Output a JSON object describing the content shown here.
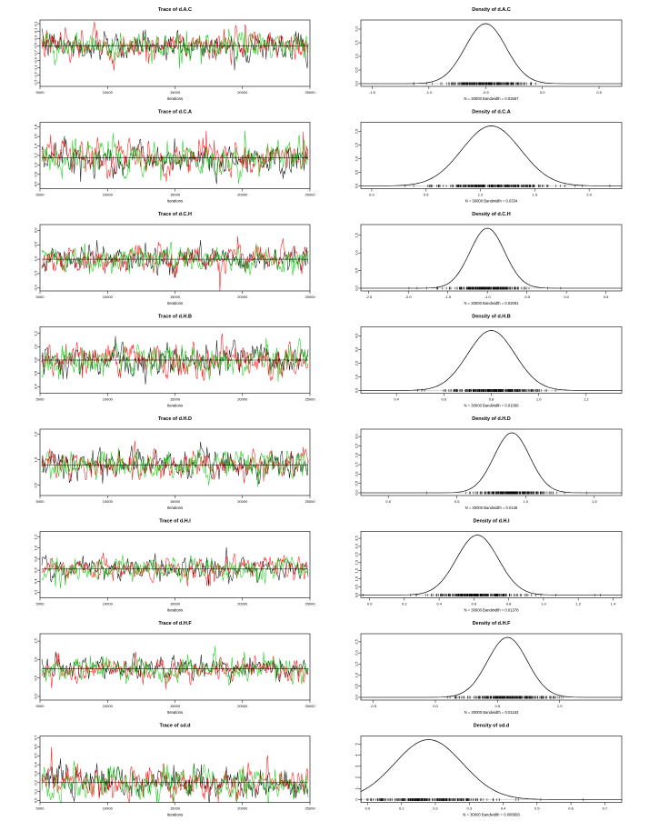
{
  "colors": {
    "chain1": "#000000",
    "chain2": "#ff0000",
    "chain3": "#00cc00",
    "density": "#000000",
    "frame": "#000000"
  },
  "panels": [
    {
      "trace": {
        "title": "Trace of d.A.C",
        "xlabel": "Iterations",
        "x_ticks": [
          "5000",
          "10000",
          "15000",
          "20000",
          "25000"
        ],
        "x_range": [
          5000,
          25000
        ],
        "y_ticks": [
          "0.1",
          "-0.1",
          "-0.3",
          "-0.5",
          "-0.7",
          "-0.9",
          "-1.1",
          "-1.3",
          "-1.5"
        ],
        "ylim": [
          -1.6,
          0.2
        ],
        "mean": -0.5,
        "sd": 0.17
      },
      "density": {
        "title": "Density of d.A.C",
        "xlabel": "N = 30000   Bandwidth = 0.02567",
        "x_ticks": [
          "-1.5",
          "-1.0",
          "-0.5",
          "0.0",
          "0.5"
        ],
        "xlim": [
          -1.6,
          0.7
        ],
        "y_ticks": [
          "0.0",
          "0.5",
          "1.0",
          "1.5",
          "2.0"
        ],
        "mean": -0.5,
        "sd": 0.18
      }
    },
    {
      "trace": {
        "title": "Trace of d.C.A",
        "xlabel": "Iterations",
        "x_ticks": [
          "5000",
          "10000",
          "15000",
          "20000",
          "25000"
        ],
        "x_range": [
          5000,
          25000
        ],
        "y_ticks": [
          "1.8",
          "1.6",
          "1.4",
          "1.2",
          "1.0",
          "0.8",
          "0.6"
        ],
        "ylim": [
          0.5,
          1.9
        ],
        "mean": 1.15,
        "sd": 0.15
      },
      "density": {
        "title": "Density of d.C.A",
        "xlabel": "N = 30000   Bandwidth = 0.0334",
        "x_ticks": [
          "0.0",
          "0.5",
          "1.0",
          "1.5",
          "2.0"
        ],
        "xlim": [
          -0.1,
          2.3
        ],
        "y_ticks": [
          "0.0",
          "0.5",
          "1.0",
          "1.5",
          "2.0"
        ],
        "mean": 1.1,
        "sd": 0.27
      }
    },
    {
      "trace": {
        "title": "Trace of d.C.H",
        "xlabel": "Iterations",
        "x_ticks": [
          "5000",
          "10000",
          "15000",
          "20000",
          "25000"
        ],
        "x_range": [
          5000,
          25000
        ],
        "y_ticks": [
          "0.0",
          "-0.5",
          "-1.0",
          "-1.5",
          "-2.0"
        ],
        "ylim": [
          -2.1,
          0.2
        ],
        "mean": -1.0,
        "sd": 0.2
      },
      "density": {
        "title": "Density of d.C.H",
        "xlabel": "N = 30000   Bandwidth = 0.02091",
        "x_ticks": [
          "-2.5",
          "-2.0",
          "-1.5",
          "-1.0",
          "-0.5",
          "0.0",
          "0.5"
        ],
        "xlim": [
          -2.6,
          0.7
        ],
        "y_ticks": [
          "0.0",
          "0.5",
          "1.0",
          "1.5"
        ],
        "mean": -1.0,
        "sd": 0.22
      }
    },
    {
      "trace": {
        "title": "Trace of d.H.B",
        "xlabel": "Iterations",
        "x_ticks": [
          "5000",
          "10000",
          "15000",
          "20000",
          "25000"
        ],
        "x_range": [
          5000,
          25000
        ],
        "y_ticks": [
          "1.2",
          "1.0",
          "0.8",
          "0.6",
          "0.4"
        ],
        "ylim": [
          0.3,
          1.3
        ],
        "mean": 0.8,
        "sd": 0.1
      },
      "density": {
        "title": "Density of d.H.B",
        "xlabel": "N = 30000   Bandwidth = 0.01098",
        "x_ticks": [
          "0.4",
          "0.6",
          "0.8",
          "1.0",
          "1.2"
        ],
        "xlim": [
          0.25,
          1.35
        ],
        "y_ticks": [
          "0.0",
          "1.0",
          "2.0",
          "3.0",
          "4.0"
        ],
        "mean": 0.8,
        "sd": 0.1
      }
    },
    {
      "trace": {
        "title": "Trace of d.H.D",
        "xlabel": "Iterations",
        "x_ticks": [
          "5000",
          "10000",
          "15000",
          "20000",
          "25000"
        ],
        "x_range": [
          5000,
          25000
        ],
        "y_ticks": [
          "1.5",
          "1.0",
          "0.5"
        ],
        "ylim": [
          0.3,
          1.6
        ],
        "mean": 0.9,
        "sd": 0.12
      },
      "density": {
        "title": "Density of d.H.D",
        "xlabel": "N = 30000   Bandwidth = 0.0148",
        "x_ticks": [
          "0.0",
          "0.5",
          "1.0",
          "1.5"
        ],
        "xlim": [
          -0.2,
          1.7
        ],
        "y_ticks": [
          "0.0",
          "0.5",
          "1.0",
          "1.5",
          "2.0",
          "2.5",
          "3.0"
        ],
        "mean": 0.9,
        "sd": 0.13
      }
    },
    {
      "trace": {
        "title": "Trace of d.H.I",
        "xlabel": "Iterations",
        "x_ticks": [
          "5000",
          "10000",
          "15000",
          "20000",
          "25000"
        ],
        "x_range": [
          5000,
          25000
        ],
        "y_ticks": [
          "1.2",
          "1.0",
          "0.8",
          "0.6",
          "0.4",
          "0.2"
        ],
        "ylim": [
          0.1,
          1.3
        ],
        "mean": 0.62,
        "sd": 0.09
      },
      "density": {
        "title": "Density of d.H.I",
        "xlabel": "N = 30000   Bandwidth = 0.01376",
        "x_ticks": [
          "0.0",
          "0.2",
          "0.4",
          "0.6",
          "0.8",
          "1.0",
          "1.2",
          "1.4"
        ],
        "xlim": [
          -0.05,
          1.45
        ],
        "y_ticks": [
          "0.0",
          "0.5",
          "1.0",
          "1.5",
          "2.0",
          "2.5",
          "3.0",
          "3.5"
        ],
        "mean": 0.62,
        "sd": 0.12
      }
    },
    {
      "trace": {
        "title": "Trace of d.H.F",
        "xlabel": "Iterations",
        "x_ticks": [
          "5000",
          "10000",
          "15000",
          "20000",
          "25000"
        ],
        "x_range": [
          5000,
          25000
        ],
        "y_ticks": [
          "1.5",
          "1.0",
          "0.5",
          "0.0"
        ],
        "ylim": [
          -0.1,
          1.7
        ],
        "mean": 0.75,
        "sd": 0.14
      },
      "density": {
        "title": "Density of d.H.F",
        "xlabel": "N = 30000   Bandwidth = 0.01163",
        "x_ticks": [
          "-0.5",
          "0.0",
          "0.5",
          "1.0"
        ],
        "xlim": [
          -0.6,
          1.5
        ],
        "y_ticks": [
          "0.0",
          "0.5",
          "1.0",
          "1.5",
          "2.0",
          "2.5"
        ],
        "mean": 0.58,
        "sd": 0.16
      }
    },
    {
      "trace": {
        "title": "Trace of sd.d",
        "xlabel": "Iterations",
        "x_ticks": [
          "5000",
          "10000",
          "15000",
          "20000",
          "25000"
        ],
        "x_range": [
          5000,
          25000
        ],
        "y_ticks": [
          "0.7",
          "0.6",
          "0.5",
          "0.4",
          "0.3",
          "0.2",
          "0.1",
          "0.0"
        ],
        "ylim": [
          -0.02,
          0.72
        ],
        "mean": 0.2,
        "sd": 0.08
      },
      "density": {
        "title": "Density of sd.d",
        "xlabel": "N = 30000   Bandwidth = 0.008658",
        "x_ticks": [
          "0.0",
          "0.1",
          "0.2",
          "0.3",
          "0.4",
          "0.5",
          "0.6",
          "0.7"
        ],
        "xlim": [
          -0.02,
          0.75
        ],
        "y_ticks": [
          "0",
          "1",
          "2",
          "3",
          "4",
          "5"
        ],
        "mean": 0.18,
        "sd": 0.1
      }
    }
  ]
}
